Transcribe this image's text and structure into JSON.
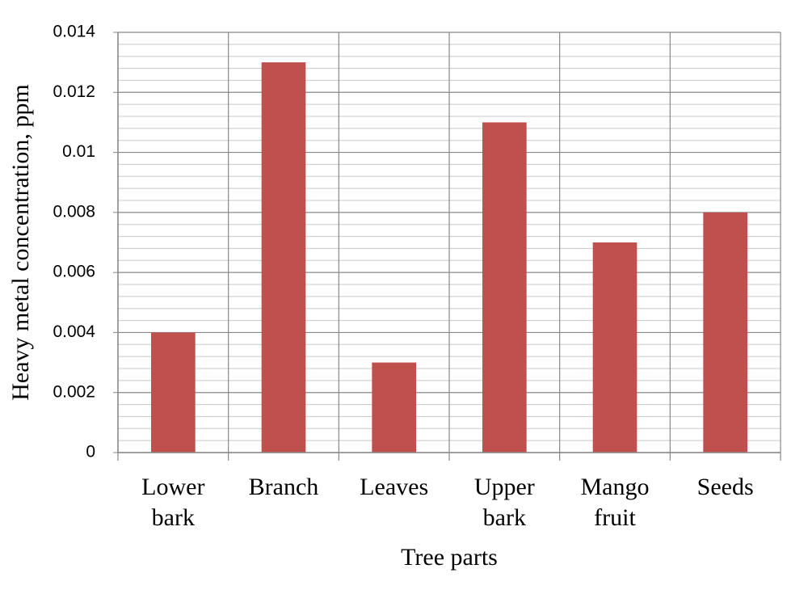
{
  "chart_data": {
    "type": "bar",
    "xlabel": "Tree parts",
    "ylabel": "Heavy metal concentration, ppm",
    "categories": [
      "Lower bark",
      "Branch",
      "Leaves",
      "Upper bark",
      "Mango fruit",
      "Seeds"
    ],
    "values": [
      0.004,
      0.013,
      0.003,
      0.011,
      0.007,
      0.008
    ],
    "color": "#c0504d",
    "ylim": [
      0,
      0.014
    ],
    "yticks": [
      0,
      0.002,
      0.004,
      0.006,
      0.008,
      0.01,
      0.012,
      0.014
    ],
    "grid": true,
    "minor_grid": 5
  }
}
